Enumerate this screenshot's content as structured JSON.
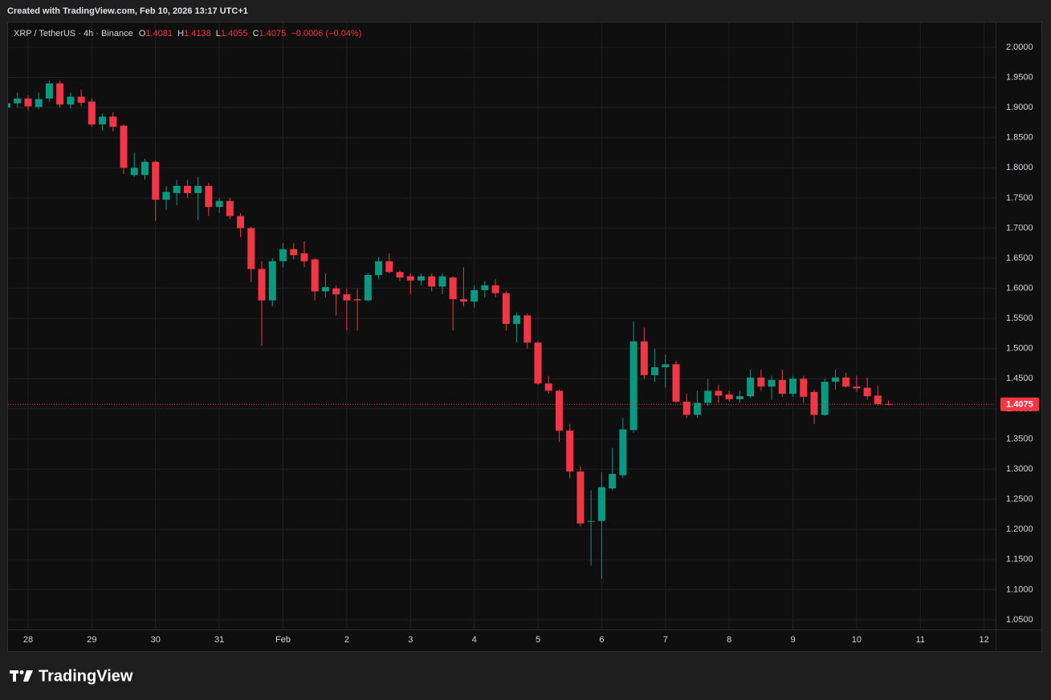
{
  "chart_data": {
    "type": "candlestick",
    "caption": "Created with TradingView.com, Feb 10, 2026 13:17 UTC+1",
    "title": "XRP / TetherUS · 4h · Binance",
    "ohlc_labels": [
      "O",
      "H",
      "L",
      "C"
    ],
    "change": "−0.0006 (−0.04%)",
    "brand": "TradingView",
    "up_color": "#089981",
    "down_color": "#f23645",
    "grid": true,
    "categories": [
      null,
      null,
      "28",
      null,
      null,
      null,
      null,
      null,
      "29",
      null,
      null,
      null,
      null,
      null,
      "30",
      null,
      null,
      null,
      null,
      null,
      "31",
      null,
      null,
      null,
      null,
      null,
      "Feb",
      null,
      null,
      null,
      null,
      null,
      "2",
      null,
      null,
      null,
      null,
      null,
      "3",
      null,
      null,
      null,
      null,
      null,
      "4",
      null,
      null,
      null,
      null,
      null,
      "5",
      null,
      null,
      null,
      null,
      null,
      "6",
      null,
      null,
      null,
      null,
      null,
      "7",
      null,
      null,
      null,
      null,
      null,
      "8",
      null,
      null,
      null,
      null,
      null,
      "9",
      null,
      null,
      null,
      null,
      null,
      "10",
      null,
      null,
      null,
      null,
      null,
      "11",
      null,
      null,
      null,
      null,
      null,
      "12",
      null
    ],
    "open": [
      1.9,
      1.907,
      1.915,
      1.901,
      1.915,
      1.94,
      1.905,
      1.918,
      1.91,
      1.872,
      1.885,
      1.87,
      1.788,
      1.788,
      1.81,
      1.747,
      1.758,
      1.77,
      1.758,
      1.77,
      1.735,
      1.745,
      1.72,
      1.7,
      1.632,
      1.58,
      1.645,
      1.665,
      1.658,
      1.648,
      1.595,
      1.6,
      1.59,
      1.582,
      1.58,
      1.622,
      1.645,
      1.627,
      1.62,
      1.613,
      1.62,
      1.603,
      1.618,
      1.582,
      1.578,
      1.597,
      1.605,
      1.592,
      1.541,
      1.555,
      1.51,
      1.442,
      1.43,
      1.364,
      1.296,
      1.213,
      1.214,
      1.268,
      1.29,
      1.365,
      1.512,
      1.456,
      1.469,
      1.474,
      1.412,
      1.39,
      1.41,
      1.43,
      1.424,
      1.416,
      1.421,
      1.452,
      1.437,
      1.448,
      1.425,
      1.45,
      1.428,
      1.39,
      1.445,
      1.452,
      1.437,
      1.435,
      1.422,
      1.4081,
      null,
      null,
      null,
      null,
      null,
      null,
      null,
      null,
      null,
      null
    ],
    "high": [
      1.91,
      1.925,
      1.92,
      1.925,
      1.945,
      1.945,
      1.925,
      1.93,
      1.915,
      1.89,
      1.892,
      1.872,
      1.825,
      1.815,
      1.812,
      1.77,
      1.78,
      1.78,
      1.785,
      1.775,
      1.75,
      1.75,
      1.725,
      1.702,
      1.645,
      1.65,
      1.675,
      1.675,
      1.678,
      1.65,
      1.625,
      1.605,
      1.6,
      1.6,
      1.625,
      1.652,
      1.658,
      1.63,
      1.625,
      1.625,
      1.625,
      1.625,
      1.62,
      1.635,
      1.605,
      1.612,
      1.615,
      1.595,
      1.56,
      1.558,
      1.512,
      1.455,
      1.432,
      1.375,
      1.305,
      1.265,
      1.295,
      1.335,
      1.385,
      1.545,
      1.535,
      1.5,
      1.49,
      1.48,
      1.425,
      1.43,
      1.45,
      1.44,
      1.43,
      1.43,
      1.465,
      1.465,
      1.455,
      1.465,
      1.455,
      1.455,
      1.432,
      1.45,
      1.465,
      1.46,
      1.455,
      1.452,
      1.438,
      1.4138,
      null,
      null,
      null,
      null,
      null,
      null,
      null,
      null,
      null,
      null
    ],
    "low": [
      1.898,
      1.9,
      1.895,
      1.897,
      1.91,
      1.9,
      1.898,
      1.902,
      1.868,
      1.862,
      1.86,
      1.79,
      1.785,
      1.78,
      1.712,
      1.73,
      1.738,
      1.75,
      1.713,
      1.72,
      1.725,
      1.715,
      1.685,
      1.61,
      1.505,
      1.57,
      1.635,
      1.648,
      1.635,
      1.58,
      1.585,
      1.555,
      1.53,
      1.53,
      1.578,
      1.615,
      1.625,
      1.612,
      1.59,
      1.605,
      1.595,
      1.59,
      1.53,
      1.57,
      1.568,
      1.585,
      1.585,
      1.53,
      1.51,
      1.5,
      1.44,
      1.425,
      1.345,
      1.285,
      1.205,
      1.14,
      1.118,
      1.265,
      1.285,
      1.36,
      1.45,
      1.445,
      1.435,
      1.41,
      1.385,
      1.385,
      1.405,
      1.41,
      1.412,
      1.41,
      1.418,
      1.43,
      1.415,
      1.42,
      1.42,
      1.41,
      1.375,
      1.388,
      1.432,
      1.435,
      1.428,
      1.415,
      1.405,
      1.4055,
      null,
      null,
      null,
      null,
      null,
      null,
      null,
      null,
      null,
      null
    ],
    "close": [
      1.907,
      1.915,
      1.902,
      1.914,
      1.94,
      1.905,
      1.918,
      1.908,
      1.872,
      1.885,
      1.868,
      1.8,
      1.8,
      1.81,
      1.747,
      1.76,
      1.77,
      1.758,
      1.77,
      1.735,
      1.745,
      1.72,
      1.7,
      1.632,
      1.58,
      1.645,
      1.665,
      1.655,
      1.645,
      1.595,
      1.602,
      1.59,
      1.58,
      1.58,
      1.622,
      1.645,
      1.627,
      1.618,
      1.613,
      1.62,
      1.603,
      1.62,
      1.582,
      1.578,
      1.597,
      1.605,
      1.592,
      1.541,
      1.555,
      1.51,
      1.442,
      1.43,
      1.364,
      1.296,
      1.21,
      1.214,
      1.27,
      1.292,
      1.366,
      1.512,
      1.456,
      1.469,
      1.474,
      1.412,
      1.39,
      1.41,
      1.43,
      1.422,
      1.416,
      1.421,
      1.452,
      1.437,
      1.448,
      1.425,
      1.45,
      1.42,
      1.39,
      1.445,
      1.452,
      1.437,
      1.434,
      1.421,
      1.408,
      1.4075,
      null,
      null,
      null,
      null,
      null,
      null,
      null,
      null,
      null,
      null
    ],
    "ylim": [
      1.034,
      2.0412
    ],
    "yticks": [
      {
        "value": 1.05,
        "label": "1.0500"
      },
      {
        "value": 1.1,
        "label": "1.1000"
      },
      {
        "value": 1.15,
        "label": "1.1500"
      },
      {
        "value": 1.2,
        "label": "1.2000"
      },
      {
        "value": 1.25,
        "label": "1.2500"
      },
      {
        "value": 1.3,
        "label": "1.3000"
      },
      {
        "value": 1.35,
        "label": "1.3500"
      },
      {
        "value": 1.4,
        "label": "1.4000"
      },
      {
        "value": 1.45,
        "label": "1.4500"
      },
      {
        "value": 1.5,
        "label": "1.5000"
      },
      {
        "value": 1.55,
        "label": "1.5500"
      },
      {
        "value": 1.6,
        "label": "1.6000"
      },
      {
        "value": 1.65,
        "label": "1.6500"
      },
      {
        "value": 1.7,
        "label": "1.7000"
      },
      {
        "value": 1.75,
        "label": "1.7500"
      },
      {
        "value": 1.8,
        "label": "1.8000"
      },
      {
        "value": 1.85,
        "label": "1.8500"
      },
      {
        "value": 1.9,
        "label": "1.9000"
      },
      {
        "value": 1.95,
        "label": "1.9500"
      },
      {
        "value": 2,
        "label": "2.0000"
      }
    ]
  }
}
